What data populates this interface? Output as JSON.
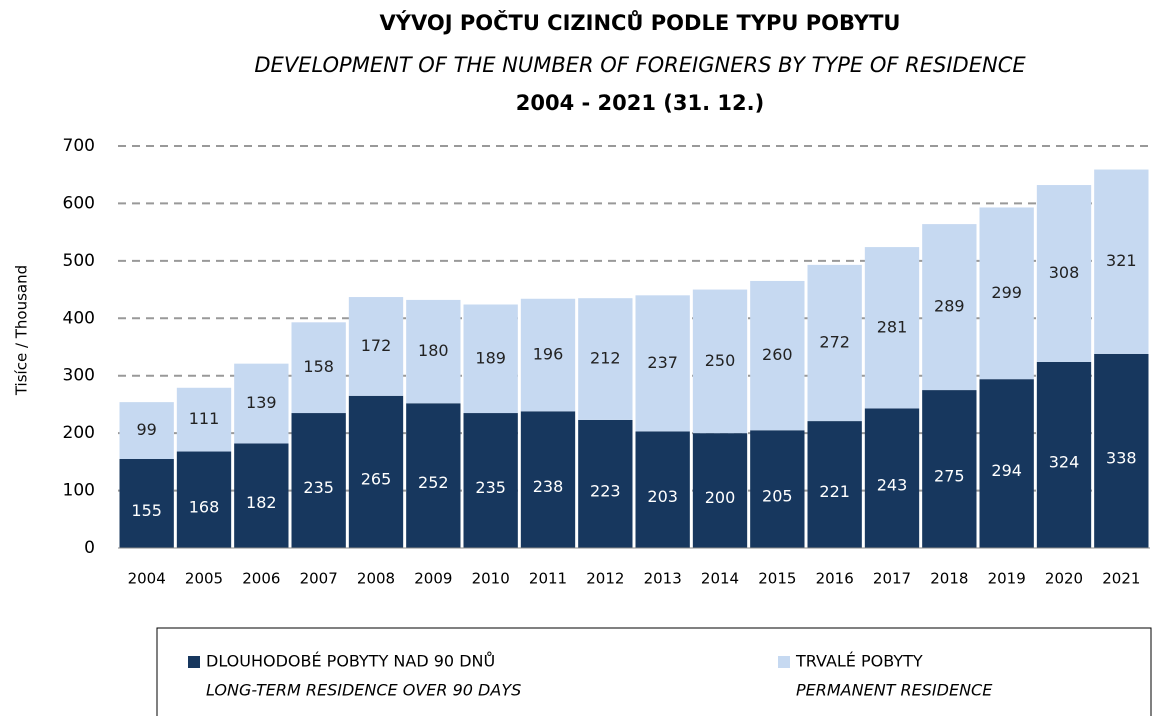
{
  "chart_data": {
    "type": "stacked_bar",
    "title": "VÝVOJ POČTU CIZINCŮ PODLE TYPU POBYTU",
    "subtitle": "DEVELOPMENT OF THE NUMBER OF FOREIGNERS BY TYPE OF RESIDENCE",
    "period": "2004 - 2021 (31. 12.)",
    "ylabel": "Tisíce / Thousand",
    "categories": [
      "2004",
      "2005",
      "2006",
      "2007",
      "2008",
      "2009",
      "2010",
      "2011",
      "2012",
      "2013",
      "2014",
      "2015",
      "2016",
      "2017",
      "2018",
      "2019",
      "2020",
      "2021"
    ],
    "series": [
      {
        "name": "DLOUHODOBÉ POBYTY NAD 90 DNŮ",
        "name_en": "LONG-TERM RESIDENCE OVER 90 DAYS",
        "color": "#17375e",
        "label_color": "#ffffff",
        "values": [
          155,
          168,
          182,
          235,
          265,
          252,
          235,
          238,
          223,
          203,
          200,
          205,
          221,
          243,
          275,
          294,
          324,
          338
        ]
      },
      {
        "name": "TRVALÉ POBYTY",
        "name_en": "PERMANENT RESIDENCE",
        "color": "#c6d9f1",
        "label_color": "#222222",
        "values": [
          99,
          111,
          139,
          158,
          172,
          180,
          189,
          196,
          212,
          237,
          250,
          260,
          272,
          281,
          289,
          299,
          308,
          321
        ]
      }
    ],
    "ylim": [
      0,
      700
    ],
    "yticks": [
      0,
      100,
      200,
      300,
      400,
      500,
      600,
      700
    ],
    "grid": true
  }
}
